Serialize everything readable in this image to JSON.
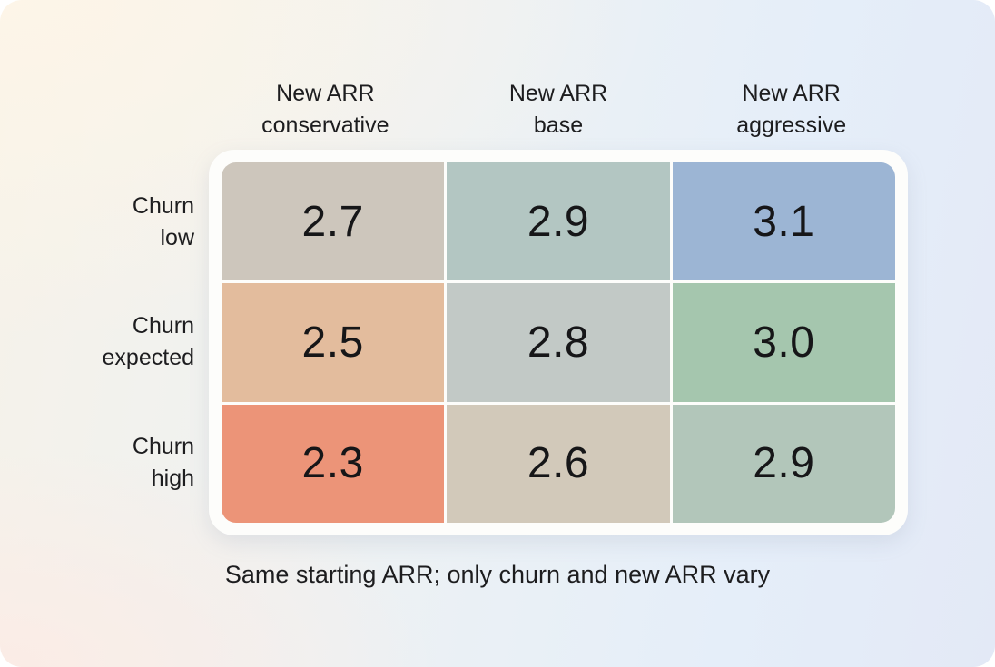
{
  "chart_data": {
    "type": "heatmap",
    "title": "",
    "columns": [
      "New ARR\nconservative",
      "New ARR\nbase",
      "New ARR\naggressive"
    ],
    "rows": [
      "Churn\nlow",
      "Churn\nexpected",
      "Churn\nhigh"
    ],
    "values": [
      [
        2.7,
        2.9,
        3.1
      ],
      [
        2.5,
        2.8,
        3.0
      ],
      [
        2.3,
        2.6,
        2.9
      ]
    ],
    "display": [
      [
        "2.7",
        "2.9",
        "3.1"
      ],
      [
        "2.5",
        "2.8",
        "3.0"
      ],
      [
        "2.3",
        "2.6",
        "2.9"
      ]
    ],
    "cell_colors": [
      [
        "#cdc6bc",
        "#b3c6c2",
        "#9cb5d4"
      ],
      [
        "#e3bc9d",
        "#c2c9c6",
        "#a5c6ae"
      ],
      [
        "#ec9478",
        "#d2c9ba",
        "#b2c6ba"
      ]
    ],
    "value_range": [
      2.3,
      3.1
    ],
    "caption": "Same starting ARR; only churn and new ARR vary",
    "legend_position": "none",
    "grid": "3x3 matrix with white gaps, rounded white panel"
  },
  "theme": {
    "background_corner_top_left": "#fdf5e8",
    "background_corner_top_right": "#e4f0f9",
    "background_corner_bottom_left": "#fbeee8",
    "background_corner_bottom_right": "#e3e9f6",
    "panel_background": "#fdfdfb",
    "text_color": "#1d1d1f"
  }
}
